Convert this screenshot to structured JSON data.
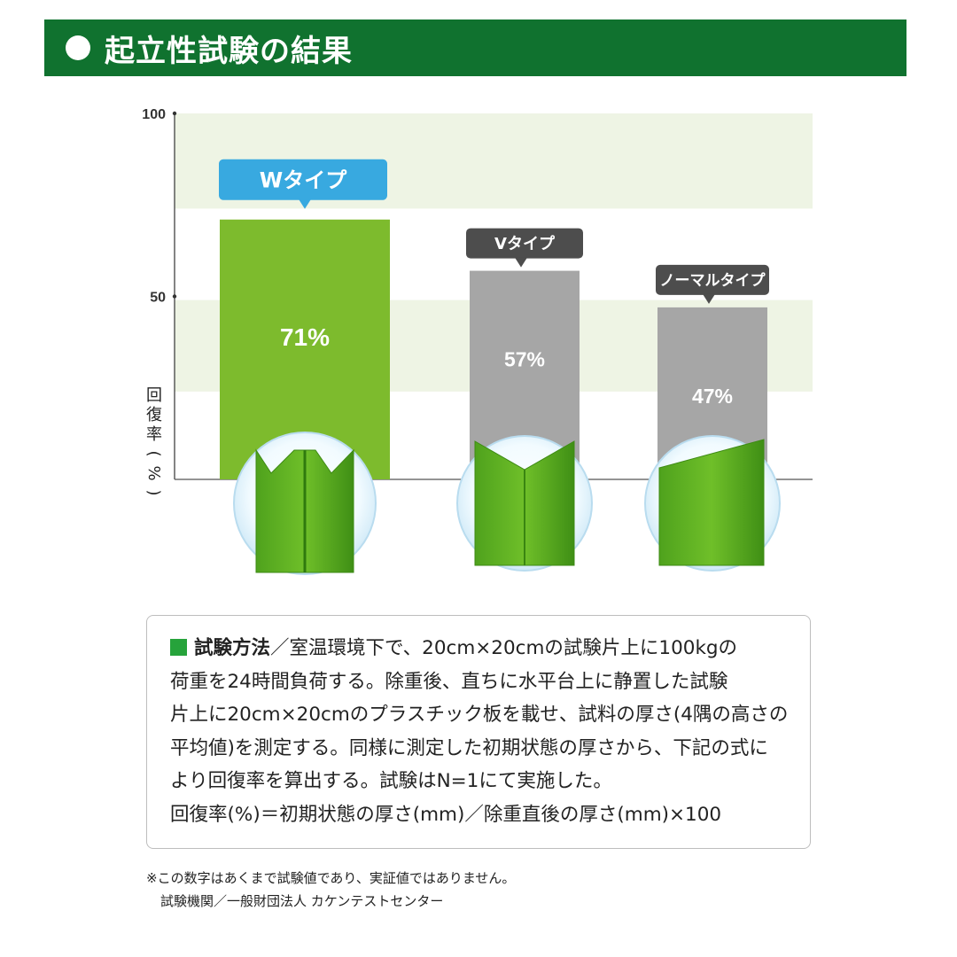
{
  "header": {
    "title": "起立性試験の結果"
  },
  "chart_data": {
    "type": "bar",
    "ylabel": "回復率(%)",
    "ylim": [
      0,
      100
    ],
    "yticks": [
      "100",
      "50"
    ],
    "categories": [
      "Wタイプ",
      "Vタイプ",
      "ノーマルタイプ"
    ],
    "values": [
      71,
      57,
      47
    ],
    "value_labels": [
      "71%",
      "57%",
      "47%"
    ]
  },
  "colors": {
    "header": "#10722f",
    "highlight_bar": "#7dbb2d",
    "gray_bar": "#a6a6a6",
    "blue_tag": "#38a9e0",
    "dark_tag": "#4d4d4d",
    "band": "#eef4e4"
  },
  "method": {
    "label": "試験方法",
    "lines": [
      "／室温環境下で、20cm×20cmの試験片上に100kgの",
      "荷重を24時間負荷する。除重後、直ちに水平台上に静置した試験",
      "片上に20cm×20cmのプラスチック板を載せ、試料の厚さ(4隅の高さの",
      "平均値)を測定する。同様に測定した初期状態の厚さから、下記の式に",
      "より回復率を算出する。試験はN=1にて実施した。",
      "回復率(%)＝初期状態の厚さ(mm)／除重直後の厚さ(mm)×100"
    ]
  },
  "note": {
    "line1": "※この数字はあくまで試験値であり、実証値ではありません。",
    "line2": "試験機関／一般財団法人 カケンテストセンター"
  }
}
